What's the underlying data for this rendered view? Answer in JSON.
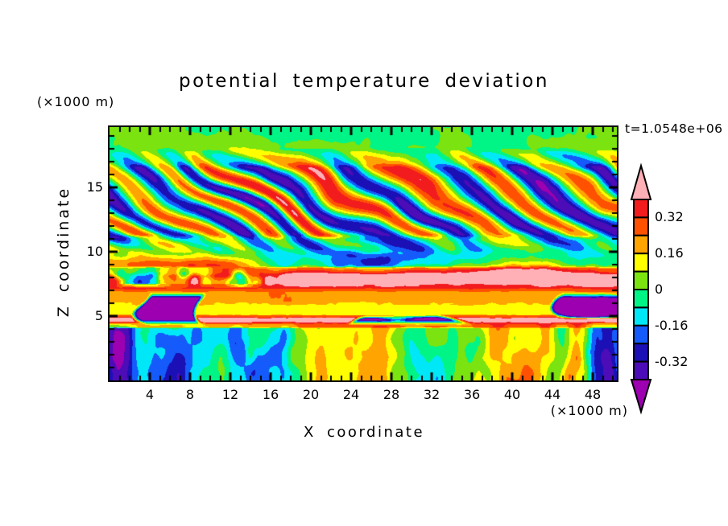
{
  "title": "potential temperature deviation",
  "time_label": "t=1.0548e+06",
  "axes": {
    "x": {
      "label": "X coordinate",
      "units": "(×1000 m)",
      "min": 0,
      "max": 50.4,
      "major_ticks": [
        4,
        8,
        12,
        16,
        20,
        24,
        28,
        32,
        36,
        40,
        44,
        48
      ],
      "minor_step": 1
    },
    "z": {
      "label": "Z coordinate",
      "units": "(×1000 m)",
      "min": 0,
      "max": 19.7,
      "major_ticks": [
        5,
        10,
        15
      ],
      "minor_step": 1
    }
  },
  "colorbar": {
    "tick_labels": [
      "0.32",
      "0.16",
      "0",
      "-0.16",
      "-0.32"
    ],
    "outline_color": "#000000"
  },
  "chart_data": {
    "type": "heatmap",
    "subtype": "filled_contour",
    "title": "potential temperature deviation",
    "xlabel": "X coordinate",
    "ylabel": "Z coordinate",
    "x_units_note": "(×1000 m)",
    "z_units_note": "(×1000 m)",
    "time_annotation": "t=1.0548e+06",
    "x_range": [
      0,
      50.4
    ],
    "z_range": [
      0,
      19.7
    ],
    "x_major_ticks": [
      4,
      8,
      12,
      16,
      20,
      24,
      28,
      32,
      36,
      40,
      44,
      48
    ],
    "z_major_ticks": [
      5,
      10,
      15
    ],
    "grid": false,
    "legend_position": "right-colorbar",
    "contour_interval": 0.08,
    "levels": [
      -0.4,
      -0.32,
      -0.24,
      -0.16,
      -0.08,
      0,
      0.08,
      0.16,
      0.24,
      0.32,
      0.4
    ],
    "labeled_levels": [
      0.32,
      0.16,
      0,
      -0.16,
      -0.32
    ],
    "level_colors": [
      "#9D00B0",
      "#4C0CB7",
      "#1A10B5",
      "#155BFB",
      "#00E8F8",
      "#00F586",
      "#7BE30F",
      "#FFFF00",
      "#FFA400",
      "#FF5100",
      "#F21B1E",
      "#FFB0B6"
    ],
    "field_summary": "Turbulence-resolving simulation slice of potential temperature deviation: calm green layer above z~17.5; tilted gravity-wave trains (alternating pink/red positive and purple/navy negative streaks sloping down to the right) for z~11-17; elongated pink streaks and purple patches z~8.5-10.5; horizontal stratified bands: pink shelf z~7.4-8.6, thin red stripe z~7.2, orange band z~6-7, yellow band z~5-6, pink band with embedded dark-purple blobs z~4.2-5; convective boundary layer z<4.2 with vertical red/orange updraft plumes and cyan/blue/purple downdrafts on a green background.",
    "generator": {
      "xmax": 50.4,
      "zmax": 19.7,
      "global_noise": {
        "amp": 0.025,
        "sx": 0.9,
        "sz": 0.9,
        "seed": 5
      },
      "layers": [
        {
          "name": "calm-top",
          "z0": 17.2,
          "z1": 19.9,
          "fade": 0.7,
          "base": 0.015,
          "noise": {
            "amp": 0.085,
            "sx": 0.1,
            "sz": 0.3,
            "seed": 11
          },
          "noise2": {
            "amp": 0.04,
            "sx": 0.3,
            "sz": 0.5,
            "seed": 13
          }
        },
        {
          "name": "gravity-waves",
          "z0": 10.7,
          "z1": 17.1,
          "fade": 1.1,
          "base": -0.02,
          "noise": {
            "amp": 0.11,
            "sx": 0.16,
            "sz": 0.25,
            "seed": 17
          },
          "wave": {
            "amp": 0.42,
            "lx": 7.6,
            "lz": 3.1,
            "phase": 1.1,
            "distort": 1.5,
            "dseed": 23,
            "ampmod": 0.7,
            "mseed": 31
          }
        },
        {
          "name": "streaks",
          "z0": 8.55,
          "z1": 10.9,
          "fade": 0.45,
          "base": -0.03,
          "streak": {
            "amp": 0.6,
            "sx": 0.05,
            "sz": 0.5,
            "seed": 41
          },
          "noise": {
            "amp": 0.14,
            "sx": 0.3,
            "sz": 0.45,
            "seed": 43
          }
        },
        {
          "name": "pink-shelf",
          "z0": 7.4,
          "z1": 8.65,
          "fade": 0.25,
          "base": 0.46,
          "noise": {
            "amp": 0.06,
            "sx": 0.22,
            "sz": 0.4,
            "seed": 53
          },
          "leftmix": {
            "xend": 13,
            "span": 5,
            "amp": 0.45,
            "sx": 0.45,
            "sz": 0.65,
            "seed": 59
          }
        },
        {
          "name": "red-stripe",
          "z0": 6.98,
          "z1": 7.42,
          "fade": 0.12,
          "base": 0.35,
          "noise": {
            "amp": 0.05,
            "sx": 0.35,
            "sz": 0.5,
            "seed": 61
          }
        },
        {
          "name": "orange-band",
          "z0": 5.95,
          "z1": 7.0,
          "fade": 0.18,
          "base": 0.205,
          "noise": {
            "amp": 0.04,
            "sx": 0.3,
            "sz": 0.45,
            "seed": 67
          }
        },
        {
          "name": "yellow-band",
          "z0": 4.97,
          "z1": 5.98,
          "fade": 0.16,
          "base": 0.125,
          "noise": {
            "amp": 0.035,
            "sx": 0.3,
            "sz": 0.45,
            "seed": 71
          }
        },
        {
          "name": "lower-pink-band",
          "z0": 4.18,
          "z1": 4.99,
          "fade": 0.14,
          "base": 0.46,
          "noise": {
            "amp": 0.05,
            "sx": 0.28,
            "sz": 0.5,
            "seed": 73
          }
        },
        {
          "name": "convective",
          "z0": -0.3,
          "z1": 4.22,
          "fade": 0.4,
          "base": 0.03,
          "edge_neg": 0.3,
          "noise": {
            "amp": 0.44,
            "sx": 0.3,
            "sz": 0.085,
            "seed": 79
          },
          "noise2": {
            "amp": 0.17,
            "sx": 0.55,
            "sz": 0.33,
            "seed": 83
          }
        }
      ],
      "purple_blobs": {
        "z0": 4.5,
        "z1": 6.6,
        "zfade": 0.3,
        "mask_sx": 0.15,
        "mask_sz": 0.3,
        "seed": 97,
        "threshold": 0.17,
        "soft": 0.16,
        "value": -0.47
      }
    }
  }
}
